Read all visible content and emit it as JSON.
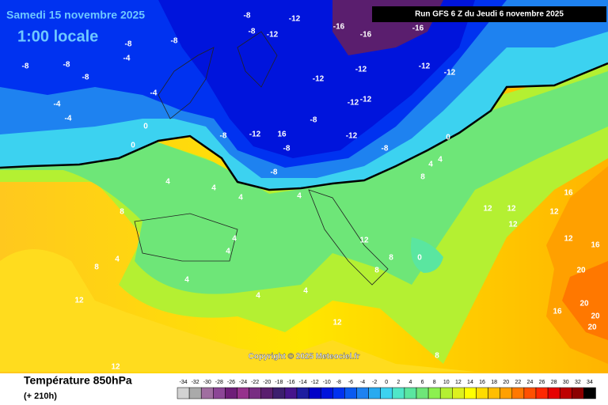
{
  "header": {
    "date": "Samedi 15 novembre 2025",
    "time": "1:00 locale",
    "run": "Run GFS 6 Z du Jeudi 6 novembre 2025"
  },
  "copyright": "Copyright © 2025 Meteociel.fr",
  "legend": {
    "title": "Température 850hPa",
    "subtitle": "(+ 210h)",
    "scale": [
      -34,
      -32,
      -30,
      -28,
      -26,
      -24,
      -22,
      -20,
      -18,
      -16,
      -14,
      -12,
      -10,
      -8,
      -6,
      -4,
      -2,
      0,
      2,
      4,
      6,
      8,
      10,
      12,
      14,
      16,
      18,
      20,
      22,
      24,
      26,
      28,
      30,
      32,
      34
    ],
    "colors": [
      "#d2d2d2",
      "#aaaaaa",
      "#a06ea0",
      "#8c4696",
      "#6e1e78",
      "#96328c",
      "#782d82",
      "#5a1e6e",
      "#3c1e6e",
      "#46148c",
      "#1e1ea0",
      "#0000c8",
      "#0014dc",
      "#0032f0",
      "#0a5af0",
      "#1e82f0",
      "#28aaf0",
      "#3cd2f0",
      "#50e6c8",
      "#5ae6a0",
      "#6ee678",
      "#8cf050",
      "#b4f032",
      "#dcf01e",
      "#ffff00",
      "#ffdc00",
      "#ffbe00",
      "#ffa000",
      "#ff7800",
      "#ff5000",
      "#ff2800",
      "#e60000",
      "#be0000",
      "#8c0000",
      "#000000"
    ]
  },
  "contour_labels": [
    -8,
    -8,
    -8,
    -8,
    -4,
    -4,
    -4,
    -4,
    -8,
    -8,
    -8,
    -12,
    -12,
    -16,
    -16,
    -16,
    -12,
    -12,
    -12,
    -12,
    -12,
    -12,
    -12,
    -8,
    -8,
    -8,
    -8,
    -12,
    16,
    -8,
    0,
    0,
    0,
    4,
    4,
    4,
    4,
    4,
    4,
    4,
    4,
    4,
    4,
    4,
    4,
    8,
    8,
    8,
    8,
    8,
    8,
    12,
    12,
    12,
    12,
    12,
    12,
    12,
    12,
    16,
    16,
    16,
    20,
    20,
    20,
    20,
    0,
    12
  ]
}
